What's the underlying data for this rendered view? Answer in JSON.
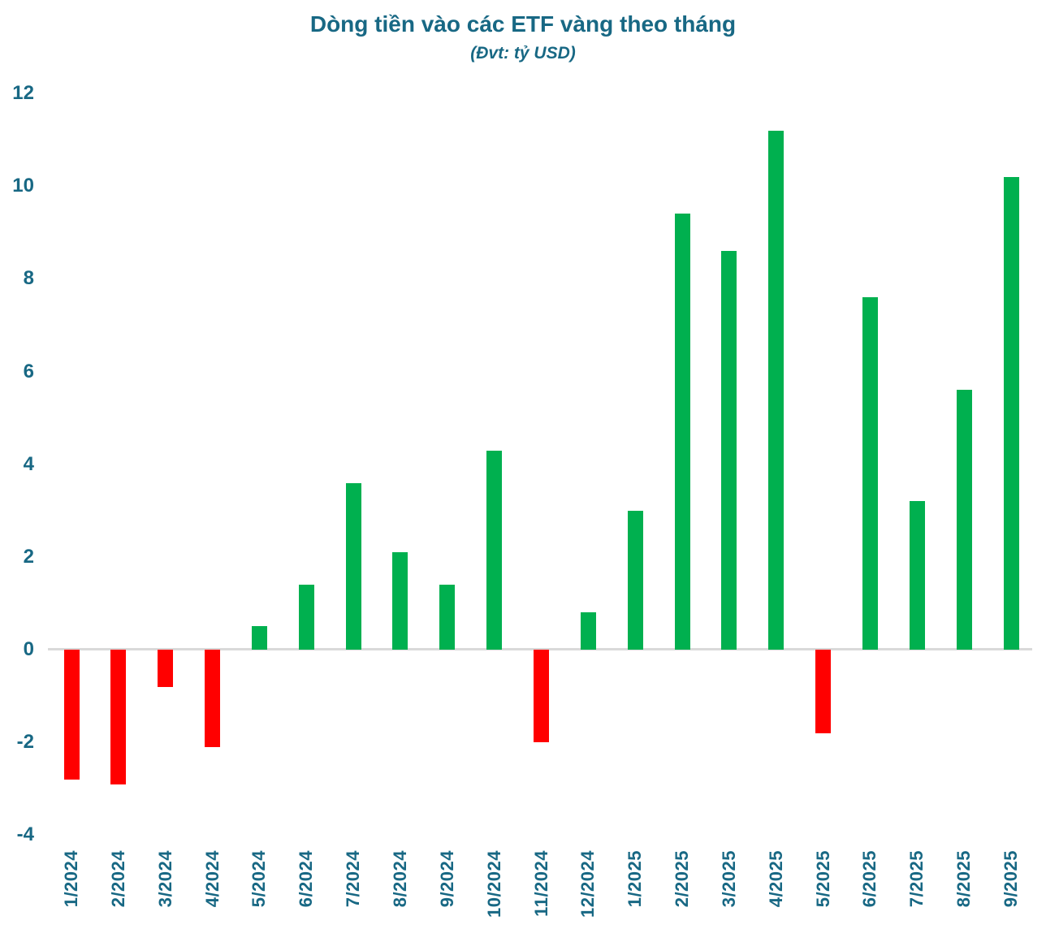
{
  "chart_data": {
    "type": "bar",
    "title": "Dòng tiền vào các ETF vàng theo tháng",
    "subtitle": "(Đvt: tỷ USD)",
    "categories": [
      "1/2024",
      "2/2024",
      "3/2024",
      "4/2024",
      "5/2024",
      "6/2024",
      "7/2024",
      "8/2024",
      "9/2024",
      "10/2024",
      "11/2024",
      "12/2024",
      "1/2025",
      "2/2025",
      "3/2025",
      "4/2025",
      "5/2025",
      "6/2025",
      "7/2025",
      "8/2025",
      "9/2025"
    ],
    "values": [
      -2.8,
      -2.9,
      -0.8,
      -2.1,
      0.5,
      1.4,
      3.6,
      2.1,
      1.4,
      4.3,
      -2.0,
      0.8,
      3.0,
      9.4,
      8.6,
      11.2,
      -1.8,
      7.6,
      3.2,
      5.6,
      10.2
    ],
    "ylim": [
      -4,
      12
    ],
    "yticks": [
      12,
      10,
      8,
      6,
      4,
      2,
      0,
      -2,
      -4
    ],
    "grid": false,
    "legend": false,
    "colors": {
      "positive_bar": "#00B04F",
      "negative_bar": "#FF0000",
      "axis_text": "#186884",
      "zero_line": "#D9D9D9"
    }
  }
}
